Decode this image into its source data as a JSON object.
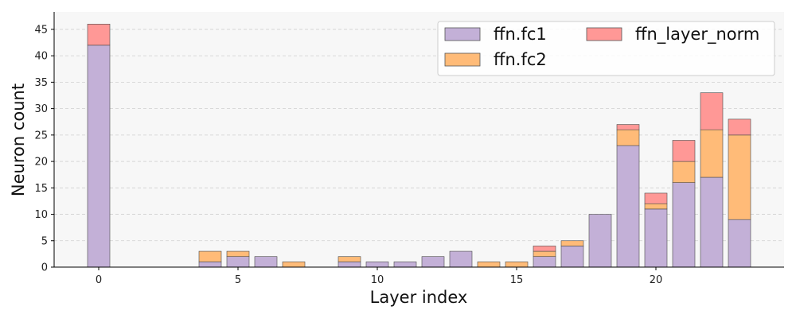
{
  "chart_data": {
    "type": "bar",
    "stacked": true,
    "xlabel": "Layer index",
    "ylabel": "Neuron count",
    "categories": [
      0,
      1,
      2,
      3,
      4,
      5,
      6,
      7,
      8,
      9,
      10,
      11,
      12,
      13,
      14,
      15,
      16,
      17,
      18,
      19,
      20,
      21,
      22,
      23
    ],
    "x_ticks": [
      0,
      5,
      10,
      15,
      20
    ],
    "y_ticks": [
      0,
      5,
      10,
      15,
      20,
      25,
      30,
      35,
      40,
      45
    ],
    "xlim": [
      -1.6,
      24.6
    ],
    "ylim": [
      0,
      48.3
    ],
    "grid": "y-dashed",
    "legend_position": "top-right",
    "series": [
      {
        "name": "ffn.fc1",
        "color": "#c3b0d7",
        "values": [
          42,
          0,
          0,
          0,
          1,
          2,
          2,
          0,
          0,
          1,
          1,
          1,
          2,
          3,
          0,
          0,
          2,
          4,
          10,
          23,
          11,
          16,
          17,
          9
        ]
      },
      {
        "name": "ffn.fc2",
        "color": "#ffbb78",
        "values": [
          0,
          0,
          0,
          0,
          2,
          1,
          0,
          1,
          0,
          1,
          0,
          0,
          0,
          0,
          1,
          1,
          1,
          1,
          0,
          3,
          1,
          4,
          9,
          16
        ]
      },
      {
        "name": "ffn_layer_norm",
        "color": "#ff9896",
        "values": [
          4,
          0,
          0,
          0,
          0,
          0,
          0,
          0,
          0,
          0,
          0,
          0,
          0,
          0,
          0,
          0,
          1,
          0,
          0,
          1,
          2,
          4,
          7,
          3
        ]
      }
    ]
  }
}
